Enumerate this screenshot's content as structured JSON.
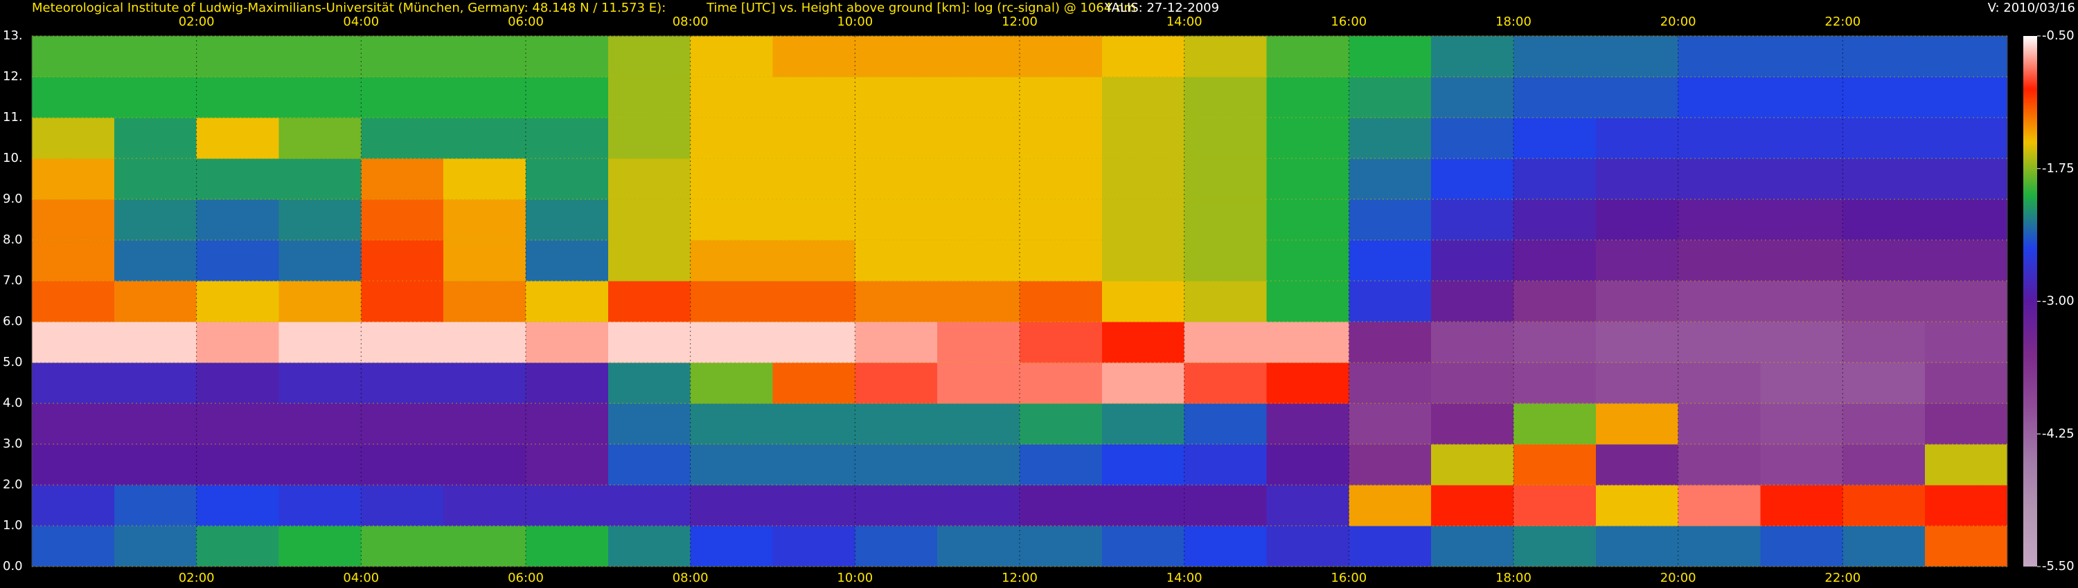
{
  "chart_data": {
    "type": "heatmap",
    "title": "Time [UTC] vs. Height above ground [km]: log (rc-signal) @ 1064 nm",
    "institute": "Meteorological Institute of Ludwig-Maximilians-Universität (München, Germany: 48.148 N / 11.573 E):",
    "station": "YALIS: 27-12-2009",
    "version": "V: 2010/03/16",
    "xlim": [
      0,
      24
    ],
    "xticks": [
      {
        "value": 2,
        "label": "02:00"
      },
      {
        "value": 4,
        "label": "04:00"
      },
      {
        "value": 6,
        "label": "06:00"
      },
      {
        "value": 8,
        "label": "08:00"
      },
      {
        "value": 10,
        "label": "10:00"
      },
      {
        "value": 12,
        "label": "12:00"
      },
      {
        "value": 14,
        "label": "14:00"
      },
      {
        "value": 16,
        "label": "16:00"
      },
      {
        "value": 18,
        "label": "18:00"
      },
      {
        "value": 20,
        "label": "20:00"
      },
      {
        "value": 22,
        "label": "22:00"
      }
    ],
    "ylim": [
      0,
      13
    ],
    "yticks": [
      {
        "value": 0,
        "label": "0.0"
      },
      {
        "value": 1,
        "label": "1.0"
      },
      {
        "value": 2,
        "label": "2.0"
      },
      {
        "value": 3,
        "label": "3.0"
      },
      {
        "value": 4,
        "label": "4.0"
      },
      {
        "value": 5,
        "label": "5.0"
      },
      {
        "value": 6,
        "label": "6.0"
      },
      {
        "value": 7,
        "label": "7.0"
      },
      {
        "value": 8,
        "label": "8.0"
      },
      {
        "value": 9,
        "label": "9.0"
      },
      {
        "value": 10,
        "label": "10."
      },
      {
        "value": 11,
        "label": "11."
      },
      {
        "value": 12,
        "label": "12."
      },
      {
        "value": 13,
        "label": "13."
      }
    ],
    "grid": true,
    "zlim": [
      -5.5,
      -0.5
    ],
    "zticks": [
      {
        "value": -0.5,
        "label": "-0.50"
      },
      {
        "value": -1.75,
        "label": "-1.75"
      },
      {
        "value": -3,
        "label": "-3.00"
      },
      {
        "value": -4.25,
        "label": "-4.25"
      },
      {
        "value": -5.5,
        "label": "-5.50"
      }
    ],
    "colorscale": [
      "#c4a6c4",
      "#b496b4",
      "#a27aaa",
      "#904c98",
      "#7c2a8c",
      "#5a1aa0",
      "#2040e8",
      "#20b040",
      "#f0c000",
      "#ff2000",
      "#ffffff"
    ],
    "xbins": [
      0,
      1,
      2,
      3,
      4,
      5,
      6,
      7,
      8,
      9,
      10,
      11,
      12,
      13,
      14,
      15,
      16,
      17,
      18,
      19,
      20,
      21,
      22,
      23,
      24
    ],
    "ybins": [
      0,
      1,
      2,
      3,
      4,
      5,
      6,
      7,
      8,
      9,
      10,
      11,
      12,
      13
    ],
    "z": [
      [
        -2.4,
        -2.3,
        -2.1,
        -2.0,
        -1.9,
        -1.9,
        -2.0,
        -2.2,
        -2.5,
        -2.6,
        -2.4,
        -2.3,
        -2.3,
        -2.4,
        -2.5,
        -2.7,
        -2.6,
        -2.3,
        -2.2,
        -2.3,
        -2.3,
        -2.4,
        -2.3,
        -1.2
      ],
      [
        -2.7,
        -2.4,
        -2.5,
        -2.6,
        -2.7,
        -2.8,
        -2.8,
        -2.8,
        -2.9,
        -2.9,
        -2.9,
        -2.9,
        -3.0,
        -3.0,
        -3.0,
        -2.8,
        -1.4,
        -1.0,
        -0.9,
        -1.5,
        -0.8,
        -1.0,
        -1.1,
        -1.0
      ],
      [
        -3.0,
        -3.0,
        -3.0,
        -3.0,
        -3.0,
        -3.0,
        -3.1,
        -2.4,
        -2.3,
        -2.3,
        -2.3,
        -2.3,
        -2.4,
        -2.5,
        -2.6,
        -3.0,
        -3.6,
        -1.6,
        -1.2,
        -3.4,
        -3.8,
        -3.9,
        -3.7,
        -1.6
      ],
      [
        -3.1,
        -3.1,
        -3.1,
        -3.1,
        -3.1,
        -3.1,
        -3.1,
        -2.3,
        -2.2,
        -2.2,
        -2.2,
        -2.2,
        -2.1,
        -2.2,
        -2.4,
        -3.2,
        -3.8,
        -3.5,
        -1.8,
        -1.4,
        -3.9,
        -4.0,
        -3.9,
        -3.6
      ],
      [
        -2.8,
        -2.8,
        -2.9,
        -2.8,
        -2.8,
        -2.8,
        -2.9,
        -2.2,
        -1.8,
        -1.2,
        -0.9,
        -0.8,
        -0.8,
        -0.7,
        -0.9,
        -1.0,
        -3.7,
        -3.8,
        -3.9,
        -4.0,
        -4.0,
        -4.1,
        -4.1,
        -3.8
      ],
      [
        -0.6,
        -0.6,
        -0.7,
        -0.6,
        -0.6,
        -0.6,
        -0.7,
        -0.6,
        -0.6,
        -0.6,
        -0.7,
        -0.8,
        -0.9,
        -1.0,
        -0.7,
        -0.7,
        -3.5,
        -3.9,
        -4.0,
        -4.1,
        -4.1,
        -4.1,
        -4.0,
        -3.9
      ],
      [
        -1.2,
        -1.3,
        -1.5,
        -1.4,
        -1.1,
        -1.3,
        -1.5,
        -1.1,
        -1.2,
        -1.2,
        -1.3,
        -1.3,
        -1.2,
        -1.5,
        -1.6,
        -2.0,
        -2.6,
        -3.2,
        -3.6,
        -3.8,
        -3.9,
        -3.9,
        -3.8,
        -3.8
      ],
      [
        -1.3,
        -2.3,
        -2.4,
        -2.3,
        -1.1,
        -1.4,
        -2.3,
        -1.6,
        -1.4,
        -1.4,
        -1.5,
        -1.5,
        -1.5,
        -1.6,
        -1.7,
        -2.0,
        -2.5,
        -2.9,
        -3.1,
        -3.3,
        -3.4,
        -3.4,
        -3.3,
        -3.3
      ],
      [
        -1.3,
        -2.2,
        -2.3,
        -2.2,
        -1.2,
        -1.4,
        -2.2,
        -1.6,
        -1.5,
        -1.5,
        -1.5,
        -1.5,
        -1.5,
        -1.6,
        -1.7,
        -2.0,
        -2.4,
        -2.7,
        -2.9,
        -3.0,
        -3.1,
        -3.1,
        -3.0,
        -3.0
      ],
      [
        -1.4,
        -2.1,
        -2.1,
        -2.1,
        -1.3,
        -1.5,
        -2.1,
        -1.6,
        -1.5,
        -1.5,
        -1.5,
        -1.5,
        -1.5,
        -1.6,
        -1.7,
        -2.0,
        -2.3,
        -2.5,
        -2.7,
        -2.8,
        -2.8,
        -2.8,
        -2.8,
        -2.8
      ],
      [
        -1.6,
        -2.1,
        -1.5,
        -1.8,
        -2.1,
        -2.1,
        -2.1,
        -1.7,
        -1.5,
        -1.5,
        -1.5,
        -1.5,
        -1.5,
        -1.6,
        -1.7,
        -2.0,
        -2.2,
        -2.4,
        -2.5,
        -2.6,
        -2.6,
        -2.6,
        -2.6,
        -2.6
      ],
      [
        -2.0,
        -2.0,
        -2.0,
        -2.0,
        -2.0,
        -2.0,
        -2.0,
        -1.7,
        -1.5,
        -1.5,
        -1.5,
        -1.5,
        -1.5,
        -1.6,
        -1.7,
        -2.0,
        -2.1,
        -2.3,
        -2.4,
        -2.4,
        -2.5,
        -2.5,
        -2.5,
        -2.5
      ],
      [
        -1.9,
        -1.9,
        -1.9,
        -1.9,
        -1.9,
        -1.9,
        -1.9,
        -1.7,
        -1.5,
        -1.4,
        -1.4,
        -1.4,
        -1.4,
        -1.5,
        -1.6,
        -1.9,
        -2.0,
        -2.2,
        -2.3,
        -2.3,
        -2.4,
        -2.4,
        -2.4,
        -2.4
      ]
    ]
  }
}
